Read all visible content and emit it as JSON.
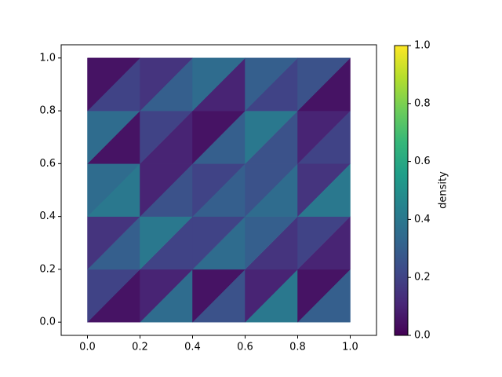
{
  "chart_data": {
    "type": "tripcolor",
    "x": [
      0,
      0.2,
      0.4,
      0.6,
      0.8,
      1
    ],
    "y": [
      0,
      0.2,
      0.4,
      0.6,
      0.8,
      1
    ],
    "values": [
      [
        0.05,
        0.2,
        0.35,
        0.1,
        0.25,
        0.05,
        0.4,
        0.1,
        0.3,
        0.05
      ],
      [
        0.3,
        0.15,
        0.2,
        0.4,
        0.35,
        0.2,
        0.15,
        0.3,
        0.1,
        0.2
      ],
      [
        0.4,
        0.35,
        0.25,
        0.1,
        0.3,
        0.2,
        0.35,
        0.25,
        0.4,
        0.15
      ],
      [
        0.05,
        0.35,
        0.1,
        0.2,
        0.3,
        0.05,
        0.25,
        0.4,
        0.2,
        0.1
      ],
      [
        0.2,
        0.05,
        0.3,
        0.15,
        0.1,
        0.35,
        0.2,
        0.3,
        0.05,
        0.25
      ]
    ],
    "colormap": "viridis",
    "xlim": [
      -0.1,
      1.1
    ],
    "ylim": [
      -0.05,
      1.05
    ],
    "xticks": [
      {
        "value": 0,
        "label": "0.0"
      },
      {
        "value": 0.2,
        "label": "0.2"
      },
      {
        "value": 0.4,
        "label": "0.4"
      },
      {
        "value": 0.6,
        "label": "0.6"
      },
      {
        "value": 0.8,
        "label": "0.8"
      },
      {
        "value": 1,
        "label": "1.0"
      }
    ],
    "yticks": [
      {
        "value": 0,
        "label": "0.0"
      },
      {
        "value": 0.2,
        "label": "0.2"
      },
      {
        "value": 0.4,
        "label": "0.4"
      },
      {
        "value": 0.6,
        "label": "0.6"
      },
      {
        "value": 0.8,
        "label": "0.8"
      },
      {
        "value": 1,
        "label": "1.0"
      }
    ],
    "colorbar": {
      "label": "density",
      "lim": [
        0,
        1
      ],
      "ticks": [
        {
          "value": 0,
          "label": "0.0"
        },
        {
          "value": 0.2,
          "label": "0.2"
        },
        {
          "value": 0.4,
          "label": "0.4"
        },
        {
          "value": 0.6,
          "label": "0.6"
        },
        {
          "value": 0.8,
          "label": "0.8"
        },
        {
          "value": 1,
          "label": "1.0"
        }
      ]
    }
  }
}
